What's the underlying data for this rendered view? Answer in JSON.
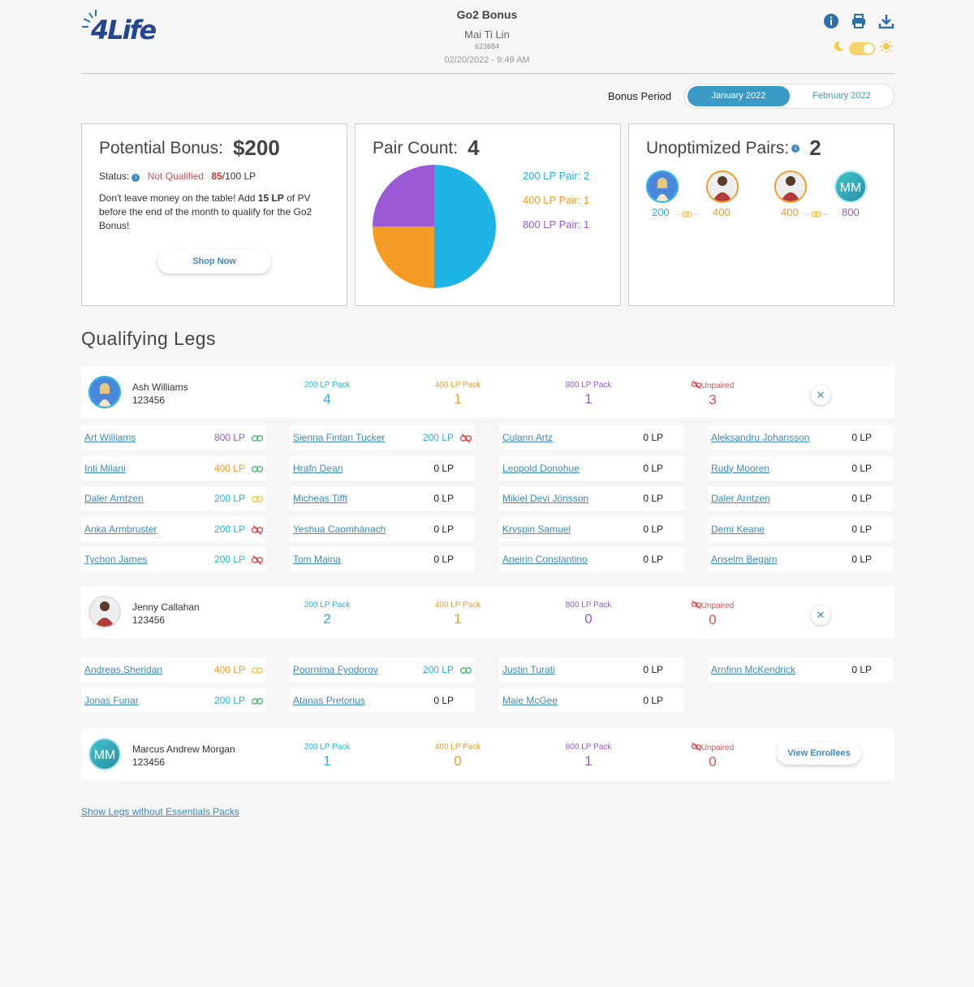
{
  "header": {
    "logo_text": "4Life",
    "title": "Go2 Bonus",
    "name": "Mai Ti Lin",
    "id": "623684",
    "datetime": "02/20/2022 - 9:49 AM",
    "icons": [
      "info-icon",
      "print-icon",
      "download-icon"
    ],
    "theme_icons": [
      "moon-icon",
      "sun-icon"
    ]
  },
  "bonus_period": {
    "label": "Bonus Period",
    "active": "January 2022",
    "other": "February 2022"
  },
  "potential": {
    "title": "Potential Bonus:",
    "amount": "$200",
    "status_label": "Status:",
    "status_value": "Not Qualified",
    "lp_current": "85",
    "lp_target": "/100 LP",
    "msg_a": "Don't leave money on the table! Add ",
    "msg_b": "15 LP",
    "msg_c": " of PV before the end of the month to qualify for the Go2 Bonus!",
    "shop_label": "Shop Now"
  },
  "pair_count": {
    "title": "Pair Count:",
    "value": "4",
    "legend": [
      "200 LP Pair: 2",
      "400 LP Pair: 1",
      "800 LP Pair: 1"
    ]
  },
  "unoptimized": {
    "title": "Unoptimized Pairs:",
    "value": "2",
    "pairs": [
      {
        "left": "200",
        "right": "400"
      },
      {
        "left": "400",
        "right": "800"
      }
    ],
    "initials": "MM"
  },
  "colors": {
    "lp200": "#1eb5e6",
    "lp400": "#f49b26",
    "lp800": "#9b59d6",
    "unpaired": "#e04e4e",
    "accent": "#3a8bc3"
  },
  "chart_data": {
    "type": "pie",
    "categories": [
      "200 LP Pair",
      "400 LP Pair",
      "800 LP Pair"
    ],
    "values": [
      2,
      1,
      1
    ],
    "colors": [
      "#1eb5e6",
      "#f49b26",
      "#9b59d6"
    ]
  },
  "legs": {
    "title": "Qualifying Legs",
    "pack_labels": {
      "p200": "200 LP Pack",
      "p400": "400 LP Pack",
      "p800": "800 LP Pack",
      "unpaired": "Unpaired"
    },
    "leg1": {
      "name": "Ash Williams",
      "id": "123456",
      "p200": "4",
      "p400": "1",
      "p800": "1",
      "unpaired": "3"
    },
    "leg2": {
      "name": "Jenny Callahan",
      "id": "123456",
      "p200": "2",
      "p400": "1",
      "p800": "0",
      "unpaired": "0"
    },
    "leg3": {
      "name": "Marcus Andrew Morgan",
      "id": "123456",
      "p200": "1",
      "p400": "0",
      "p800": "1",
      "unpaired": "0",
      "initials": "MM",
      "button": "View Enrollees"
    },
    "leg1_rows": [
      [
        "Art Williams",
        "800 LP",
        "Sienna Fintan Tucker",
        "200 LP",
        "Culann Artz",
        "0 LP",
        "Aleksandru Johansson",
        "0 LP"
      ],
      [
        "Inti Milani",
        "400 LP",
        "Hrafn Dean",
        "0 LP",
        "Leopold Donohue",
        "0 LP",
        "Rudy Mooren",
        "0 LP"
      ],
      [
        "Daler Arntzen",
        "200 LP",
        "Micheas Tifft",
        "0 LP",
        "Mikiel Devi Jönsson",
        "0 LP",
        "Daler Arntzen",
        "0 LP"
      ],
      [
        "Anka Armbruster",
        "200 LP",
        "Yeshua Caomhánach",
        "0 LP",
        "Kryspin Samuel",
        "0 LP",
        "Demi Keane",
        "0 LP"
      ],
      [
        "Tychon James",
        "200 LP",
        "Tom Maina",
        "0 LP",
        "Aneirin Constantino",
        "0 LP",
        "Anselm Begam",
        "0 LP"
      ]
    ],
    "leg2_rows": [
      [
        "Andreas Sheridan",
        "400 LP",
        "Poornima Fyodorov",
        "200 LP",
        "Justin Turati",
        "0 LP",
        "Arnfinn McKendrick",
        "0 LP"
      ],
      [
        "Jonas Funar",
        "200 LP",
        "Atanas Pretorius",
        "0 LP",
        "Maie McGee",
        "0 LP"
      ]
    ],
    "show_more": "Show Legs without Essentials Packs"
  }
}
